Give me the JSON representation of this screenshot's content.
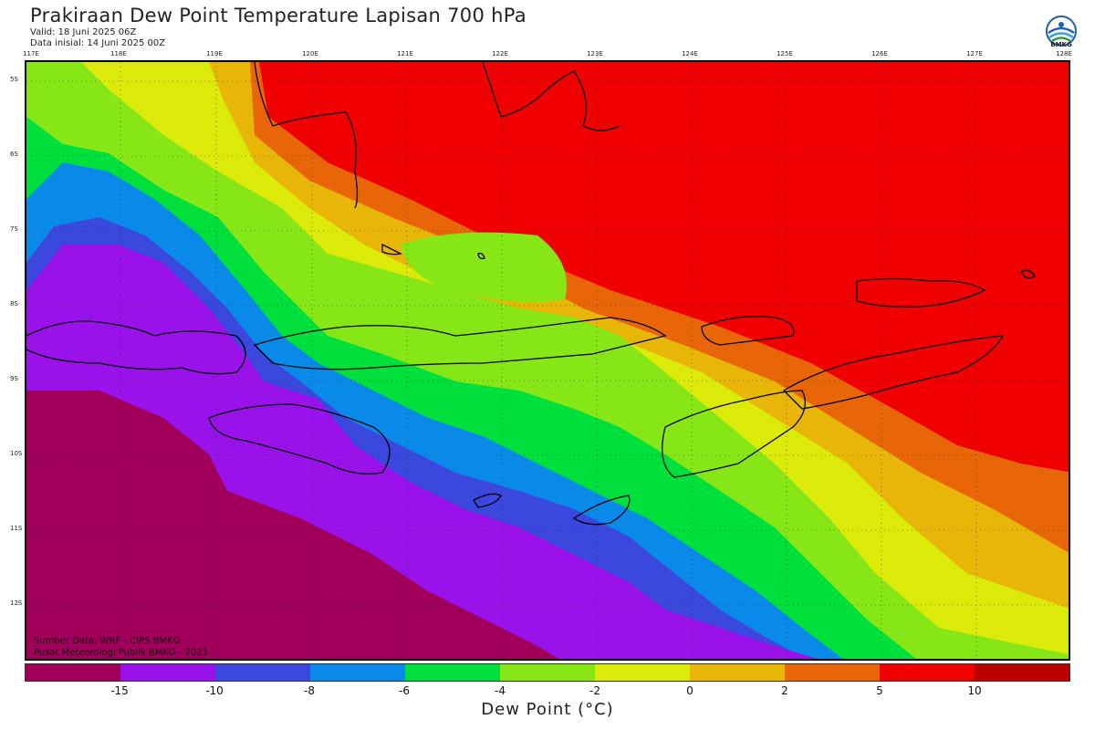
{
  "header": {
    "title": "Prakiraan Dew Point Temperature Lapisan 700 hPa",
    "valid": "Valid: 18 Juni 2025 06Z",
    "initial": "Data inisial: 14 Juni 2025 00Z",
    "logo_text": "BMKG"
  },
  "map": {
    "lon_labels": [
      "117E",
      "118E",
      "119E",
      "120E",
      "121E",
      "122E",
      "123E",
      "124E",
      "125E",
      "126E",
      "127E",
      "128E"
    ],
    "lat_labels": [
      "5S",
      "6S",
      "7S",
      "8S",
      "9S",
      "10S",
      "11S",
      "12S"
    ],
    "source_lines": [
      "Sumber Data: WRF - CIPS BMKG",
      "Pusat Meteorologi Publik BMKG - 2021"
    ]
  },
  "legend": {
    "title": "Dew Point (°C)",
    "tick_labels": [
      "-15",
      "-10",
      "-8",
      "-6",
      "-4",
      "-2",
      "0",
      "2",
      "5",
      "10"
    ],
    "colors": [
      "#a0005a",
      "#9a12ea",
      "#3a48dd",
      "#0a8ae8",
      "#00e03c",
      "#86e616",
      "#dcea0a",
      "#e8b608",
      "#e86608",
      "#f00000",
      "#b80000"
    ]
  }
}
